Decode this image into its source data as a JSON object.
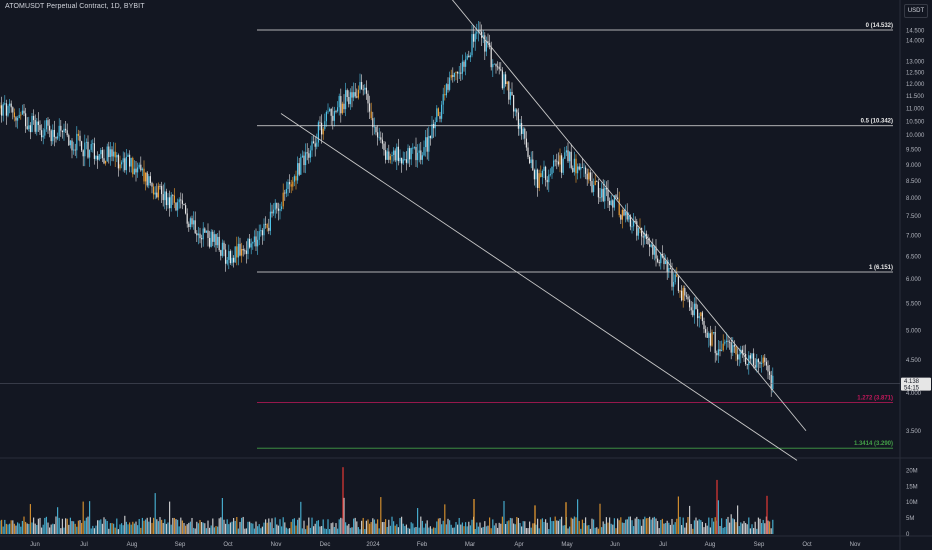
{
  "header": {
    "title": "ATOMUSDT Perpetual Contract, 1D, BYBIT",
    "currency": "USDT"
  },
  "colors": {
    "background": "#131722",
    "up": "#4fc3e8",
    "down": "#e6e6e6",
    "highlight": "#f0a030",
    "spike": "#e53935",
    "trendline": "#c8c8c8",
    "fib_neutral": "#e6e6e6",
    "fib_1272": "#c2185b",
    "fib_13414": "#43a047"
  },
  "price_label": {
    "value": "4.138",
    "countdown": "54:15"
  },
  "chart_data": [
    {
      "type": "candlestick",
      "title": "ATOMUSDT Perpetual Contract, 1D, BYBIT",
      "x_axis": {
        "tick_labels": [
          "Jun",
          "Jul",
          "Aug",
          "Sep",
          "Oct",
          "Nov",
          "Dec",
          "2024",
          "Feb",
          "Mar",
          "Apr",
          "May",
          "Jun",
          "Jul",
          "Aug",
          "Sep",
          "Oct",
          "Nov"
        ]
      },
      "y_axis": {
        "scale": "log",
        "unit": "USDT",
        "range": [
          3.2,
          15.6
        ],
        "tick_labels": [
          "15.000",
          "14.500",
          "14.000",
          "13.000",
          "12.500",
          "12.000",
          "11.500",
          "11.000",
          "10.500",
          "10.000",
          "9.500",
          "9.000",
          "8.500",
          "8.000",
          "7.500",
          "7.000",
          "6.500",
          "6.000",
          "5.500",
          "5.000",
          "4.500",
          "4.000",
          "3.500",
          "3.000"
        ]
      },
      "anchors": [
        {
          "date": "Jun",
          "price": 11.0
        },
        {
          "date": "Jul",
          "price": 9.6
        },
        {
          "date": "Aug",
          "price": 9.0
        },
        {
          "date": "Sep",
          "price": 7.7
        },
        {
          "date": "Oct",
          "price": 6.5
        },
        {
          "date": "Nov",
          "price": 6.8
        },
        {
          "date": "Nov 20",
          "price": 9.0
        },
        {
          "date": "Dec",
          "price": 10.6
        },
        {
          "date": "Dec 10",
          "price": 12.0
        },
        {
          "date": "2024",
          "price": 9.3
        },
        {
          "date": "Feb",
          "price": 9.3
        },
        {
          "date": "Feb 20",
          "price": 11.5
        },
        {
          "date": "Mar",
          "price": 14.5
        },
        {
          "date": "Mar 20",
          "price": 11.5
        },
        {
          "date": "Apr",
          "price": 8.5
        },
        {
          "date": "May",
          "price": 9.2
        },
        {
          "date": "Jun",
          "price": 7.8
        },
        {
          "date": "Jul",
          "price": 6.3
        },
        {
          "date": "Aug",
          "price": 4.7
        },
        {
          "date": "Sep",
          "price": 4.5
        },
        {
          "date": "Sep 10",
          "price": 4.138
        }
      ],
      "fib_levels": [
        {
          "label": "0 (14.532)",
          "value": 14.532,
          "color": "#e6e6e6"
        },
        {
          "label": "0.5 (10.342)",
          "value": 10.342,
          "color": "#e6e6e6"
        },
        {
          "label": "1 (6.151)",
          "value": 6.151,
          "color": "#e6e6e6"
        },
        {
          "label": "1.272 (3.871)",
          "value": 3.871,
          "color": "#c2185b"
        },
        {
          "label": "1.3414 (3.290)",
          "value": 3.29,
          "color": "#43a047"
        }
      ],
      "trendlines": [
        {
          "name": "upper-resistance",
          "from_price": 16.2,
          "to_price": 3.5
        },
        {
          "name": "lower-support",
          "from_price": 10.8,
          "to_price": 3.15
        }
      ],
      "last_price": 4.138,
      "grid": false
    },
    {
      "type": "bar",
      "title": "Volume",
      "y_axis": {
        "tick_labels": [
          "20M",
          "15M",
          "10M",
          "5M",
          "0"
        ],
        "range": [
          0,
          22
        ]
      },
      "max_volume": 22
    }
  ]
}
